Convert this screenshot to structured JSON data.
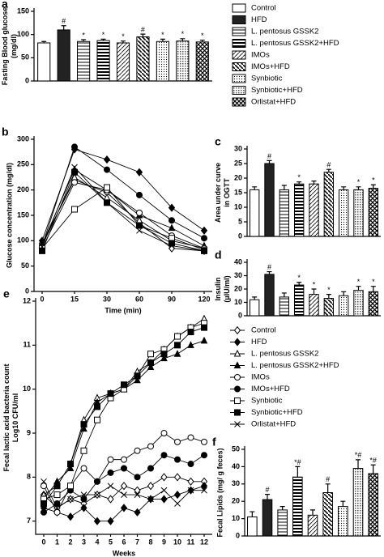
{
  "chart_data": [
    {
      "type": "bar",
      "panel_label": "a",
      "ylabel": [
        "Fasting Blood glucose",
        "(mg/dl)"
      ],
      "categories": [
        "Control",
        "HFD",
        "L. pentosus GSSK2",
        "L. pentosus GSSK2+HFD",
        "IMOs",
        "IMOs+HFD",
        "Synbiotic",
        "Synbiotic+HFD",
        "Orlistat+HFD"
      ],
      "values": [
        82,
        110,
        85,
        87,
        82,
        95,
        85,
        86,
        84
      ],
      "errors": [
        3,
        9,
        4,
        3,
        4,
        6,
        5,
        5,
        4
      ],
      "annotations": [
        null,
        "#",
        "*",
        "*",
        "*",
        "#",
        "*",
        "*",
        "*"
      ],
      "ylim": [
        0,
        150
      ],
      "yticks": [
        0,
        50,
        100,
        150
      ]
    },
    {
      "type": "line",
      "panel_label": "b",
      "ylabel": [
        "Glucose concentration (mg/dl)"
      ],
      "xlabel": "Time (min)",
      "categories": [
        "0",
        "15",
        "30",
        "60",
        "90",
        "120"
      ],
      "ylim": [
        0,
        300
      ],
      "yticks": [
        0,
        50,
        100,
        150,
        200,
        250,
        300
      ],
      "series": [
        {
          "name": "Control",
          "marker": "diamond",
          "filled": false,
          "values": [
            95,
            220,
            195,
            135,
            85,
            80
          ]
        },
        {
          "name": "HFD",
          "marker": "diamond",
          "filled": true,
          "values": [
            100,
            280,
            260,
            235,
            165,
            120
          ]
        },
        {
          "name": "L. pentosus GSSK2",
          "marker": "triangle",
          "filled": false,
          "values": [
            90,
            225,
            185,
            140,
            100,
            85
          ]
        },
        {
          "name": "L. pentosus GSSK2+HFD",
          "marker": "triangle",
          "filled": true,
          "values": [
            92,
            240,
            200,
            150,
            125,
            90
          ]
        },
        {
          "name": "IMOs",
          "marker": "circle",
          "filled": false,
          "values": [
            85,
            215,
            200,
            155,
            110,
            85
          ]
        },
        {
          "name": "IMOs+HFD",
          "marker": "circle",
          "filled": true,
          "values": [
            90,
            285,
            240,
            190,
            140,
            105
          ]
        },
        {
          "name": "Synbiotic",
          "marker": "square",
          "filled": false,
          "values": [
            85,
            162,
            205,
            130,
            105,
            82
          ]
        },
        {
          "name": "Synbiotic+HFD",
          "marker": "square",
          "filled": true,
          "values": [
            80,
            235,
            175,
            130,
            95,
            80
          ]
        },
        {
          "name": "Orlistat+HFD",
          "marker": "x",
          "filled": false,
          "values": [
            88,
            245,
            175,
            120,
            90,
            80
          ]
        }
      ]
    },
    {
      "type": "bar",
      "panel_label": "c",
      "ylabel": [
        "Area under curve",
        "in OGTT"
      ],
      "values": [
        16,
        25,
        16,
        18,
        18,
        22,
        16,
        16,
        16.5
      ],
      "errors": [
        1,
        1,
        1.5,
        0.7,
        1,
        1,
        1,
        1,
        1.2
      ],
      "annotations": [
        null,
        "#",
        null,
        "*",
        null,
        "#",
        null,
        "*",
        "*"
      ],
      "ylim": [
        0,
        30
      ],
      "yticks": [
        0,
        5,
        10,
        15,
        20,
        25,
        30
      ]
    },
    {
      "type": "bar",
      "panel_label": "d",
      "ylabel": [
        "Insulin",
        "(µIU/ml)"
      ],
      "values": [
        12,
        31,
        14,
        23,
        16,
        13,
        15,
        19,
        18
      ],
      "errors": [
        2,
        2,
        3,
        2,
        4,
        3,
        3,
        3,
        4
      ],
      "annotations": [
        null,
        "#",
        null,
        "*",
        "*",
        "*",
        null,
        "*",
        "*"
      ],
      "ylim": [
        0,
        40
      ],
      "yticks": [
        0,
        10,
        20,
        30,
        40
      ]
    },
    {
      "type": "line",
      "panel_label": "e",
      "ylabel": [
        "Fecal lactic acid bacteria count",
        "Log10 CFU/ml"
      ],
      "xlabel": "Weeks",
      "categories": [
        "0",
        "1",
        "2",
        "3",
        "4",
        "5",
        "6",
        "7",
        "8",
        "9",
        "10",
        "11",
        "12"
      ],
      "ylim": [
        6.7,
        12
      ],
      "yticks": [
        7,
        8,
        9,
        10,
        11,
        12
      ],
      "series": [
        {
          "name": "Control",
          "marker": "diamond",
          "filled": false,
          "values": [
            7.6,
            7.3,
            7.5,
            7.4,
            7.6,
            7.5,
            7.8,
            7.7,
            7.8,
            8.0,
            8.0,
            7.9,
            7.9
          ]
        },
        {
          "name": "HFD",
          "marker": "diamond",
          "filled": true,
          "values": [
            7.3,
            7.2,
            7.1,
            7.3,
            7.0,
            7.0,
            7.3,
            7.2,
            7.5,
            7.5,
            7.6,
            7.7,
            7.8
          ]
        },
        {
          "name": "L. pentosus GSSK2",
          "marker": "triangle",
          "filled": false,
          "values": [
            7.6,
            7.8,
            8.3,
            9.3,
            9.8,
            9.9,
            10.0,
            10.4,
            10.6,
            10.9,
            11.2,
            11.4,
            11.6
          ]
        },
        {
          "name": "L. pentosus GSSK2+HFD",
          "marker": "triangle",
          "filled": true,
          "values": [
            7.5,
            7.9,
            8.2,
            9.1,
            9.7,
            9.9,
            10.0,
            10.2,
            10.5,
            10.7,
            10.8,
            11.0,
            11.1
          ]
        },
        {
          "name": "IMOs",
          "marker": "circle",
          "filled": false,
          "values": [
            7.8,
            7.2,
            7.8,
            8.2,
            7.9,
            8.4,
            8.4,
            8.6,
            8.7,
            9.0,
            8.8,
            8.9,
            8.8
          ]
        },
        {
          "name": "IMOs+HFD",
          "marker": "circle",
          "filled": true,
          "values": [
            7.2,
            7.4,
            7.7,
            7.5,
            7.9,
            8.1,
            8.2,
            8.0,
            8.2,
            8.5,
            8.4,
            8.3,
            8.5
          ]
        },
        {
          "name": "Synbiotic",
          "marker": "square",
          "filled": false,
          "values": [
            7.5,
            7.6,
            7.8,
            8.6,
            9.3,
            9.8,
            10.0,
            10.3,
            10.8,
            10.9,
            11.2,
            11.4,
            11.5
          ]
        },
        {
          "name": "Synbiotic+HFD",
          "marker": "square",
          "filled": true,
          "values": [
            7.4,
            7.8,
            8.3,
            9.2,
            9.6,
            9.9,
            10.1,
            10.3,
            10.6,
            10.8,
            11.0,
            11.3,
            11.4
          ]
        },
        {
          "name": "Orlistat+HFD",
          "marker": "x",
          "filled": false,
          "values": [
            7.9,
            7.3,
            7.5,
            7.6,
            7.6,
            7.8,
            7.6,
            7.6,
            7.5,
            7.7,
            7.4,
            7.7,
            7.7
          ]
        }
      ]
    },
    {
      "type": "bar",
      "panel_label": "f",
      "ylabel": [
        "Fecal Lipids (mg/ g feces)"
      ],
      "values": [
        11,
        21,
        15,
        34,
        12,
        25,
        17,
        39,
        36
      ],
      "errors": [
        3,
        3,
        2,
        6,
        3,
        5,
        3,
        5,
        5
      ],
      "annotations": [
        null,
        "#",
        null,
        "*#",
        null,
        "#",
        null,
        "*#",
        "*#"
      ],
      "ylim": [
        0,
        50
      ],
      "yticks": [
        0,
        10,
        20,
        30,
        40,
        50
      ]
    }
  ]
}
